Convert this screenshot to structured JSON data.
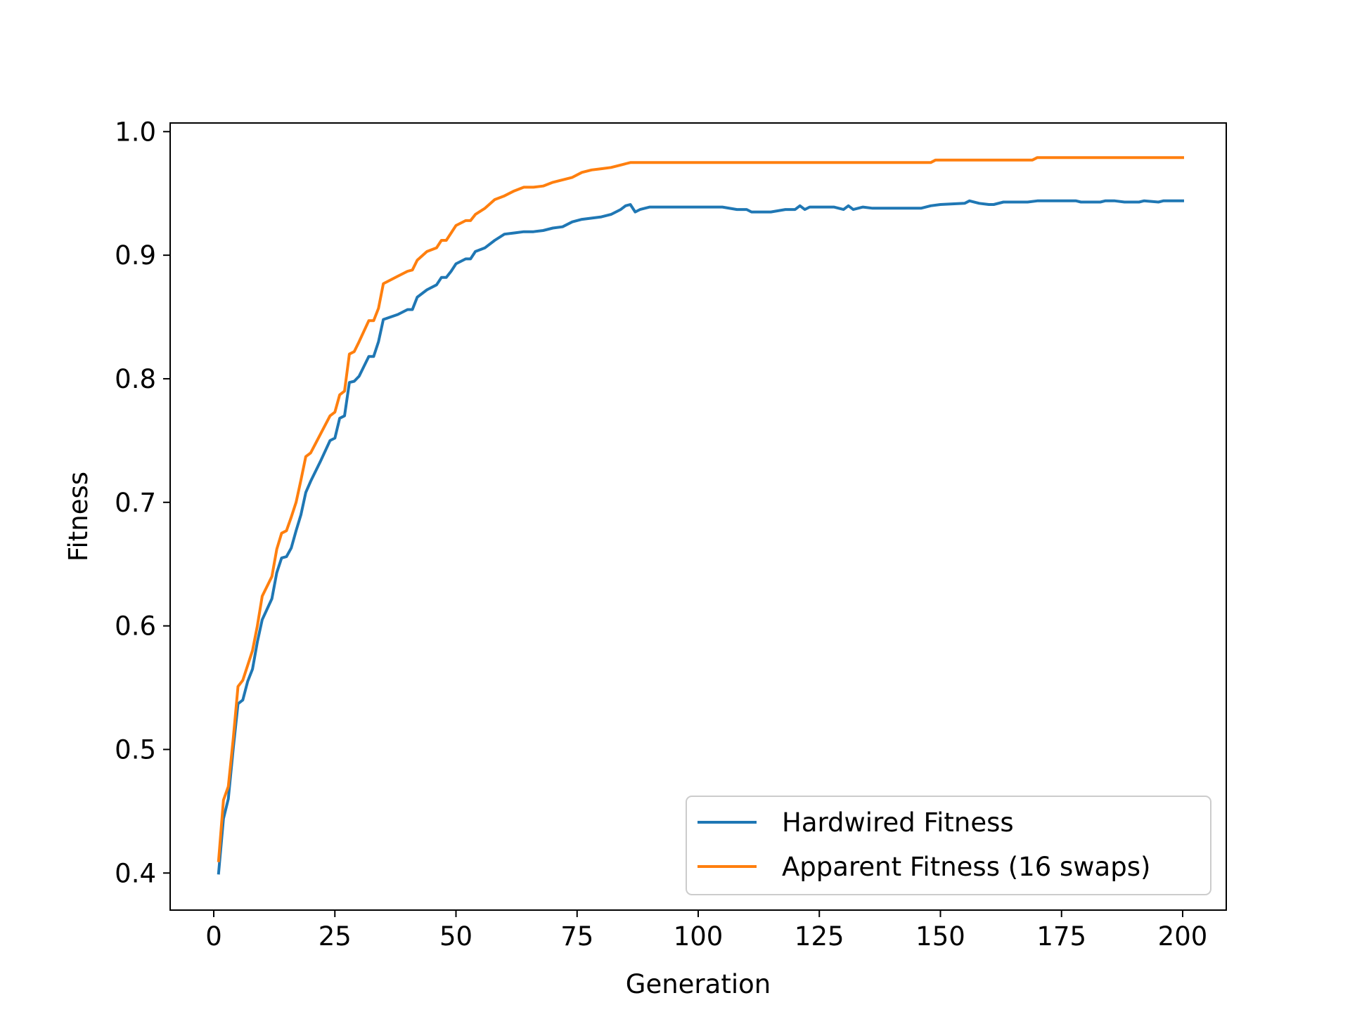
{
  "chart_data": {
    "type": "line",
    "title": "",
    "xlabel": "Generation",
    "ylabel": "Fitness",
    "xlim": [
      -9,
      209
    ],
    "ylim": [
      0.37,
      1.007
    ],
    "xticks": [
      0,
      25,
      50,
      75,
      100,
      125,
      150,
      175,
      200
    ],
    "xtick_labels": [
      "0",
      "25",
      "50",
      "75",
      "100",
      "125",
      "150",
      "175",
      "200"
    ],
    "yticks": [
      0.4,
      0.5,
      0.6,
      0.7,
      0.8,
      0.9,
      1.0
    ],
    "ytick_labels": [
      "0.4",
      "0.5",
      "0.6",
      "0.7",
      "0.8",
      "0.9",
      "1.0"
    ],
    "grid": false,
    "legend_position": "lower-right",
    "series": [
      {
        "name": "Hardwired Fitness",
        "color": "#1f77b4",
        "x": [
          1,
          2,
          3,
          4,
          5,
          6,
          7,
          8,
          9,
          10,
          12,
          13,
          14,
          15,
          16,
          17,
          18,
          19,
          20,
          22,
          24,
          25,
          26,
          27,
          28,
          29,
          30,
          32,
          33,
          34,
          35,
          38,
          40,
          41,
          42,
          44,
          46,
          47,
          48,
          49,
          50,
          52,
          53,
          54,
          56,
          58,
          60,
          62,
          64,
          66,
          68,
          70,
          72,
          74,
          76,
          78,
          80,
          82,
          84,
          85,
          86,
          87,
          88,
          90,
          95,
          100,
          105,
          108,
          110,
          111,
          115,
          118,
          120,
          121,
          122,
          123,
          125,
          128,
          130,
          131,
          132,
          134,
          136,
          140,
          145,
          146,
          148,
          150,
          155,
          156,
          158,
          160,
          161,
          163,
          165,
          166,
          168,
          170,
          175,
          178,
          179,
          180,
          182,
          183,
          184,
          185,
          186,
          188,
          190,
          191,
          192,
          195,
          196,
          198,
          200
        ],
        "y": [
          0.4,
          0.444,
          0.46,
          0.5,
          0.537,
          0.54,
          0.555,
          0.565,
          0.587,
          0.605,
          0.622,
          0.643,
          0.655,
          0.656,
          0.663,
          0.677,
          0.69,
          0.708,
          0.717,
          0.733,
          0.75,
          0.752,
          0.768,
          0.77,
          0.797,
          0.798,
          0.802,
          0.818,
          0.818,
          0.83,
          0.848,
          0.852,
          0.856,
          0.856,
          0.866,
          0.872,
          0.876,
          0.882,
          0.882,
          0.887,
          0.893,
          0.897,
          0.897,
          0.903,
          0.906,
          0.912,
          0.917,
          0.918,
          0.919,
          0.919,
          0.92,
          0.922,
          0.923,
          0.927,
          0.929,
          0.93,
          0.931,
          0.933,
          0.937,
          0.94,
          0.941,
          0.935,
          0.937,
          0.939,
          0.939,
          0.939,
          0.939,
          0.937,
          0.937,
          0.935,
          0.935,
          0.937,
          0.937,
          0.94,
          0.937,
          0.939,
          0.939,
          0.939,
          0.937,
          0.94,
          0.937,
          0.939,
          0.938,
          0.938,
          0.938,
          0.938,
          0.94,
          0.941,
          0.942,
          0.944,
          0.942,
          0.941,
          0.941,
          0.943,
          0.943,
          0.943,
          0.943,
          0.944,
          0.944,
          0.944,
          0.943,
          0.943,
          0.943,
          0.943,
          0.944,
          0.944,
          0.944,
          0.943,
          0.943,
          0.943,
          0.944,
          0.943,
          0.944,
          0.944,
          0.944
        ]
      },
      {
        "name": "Apparent Fitness (16 swaps)",
        "color": "#ff7f0e",
        "x": [
          1,
          2,
          3,
          4,
          5,
          6,
          7,
          8,
          9,
          10,
          12,
          13,
          14,
          15,
          16,
          17,
          18,
          19,
          20,
          22,
          24,
          25,
          26,
          27,
          28,
          29,
          30,
          32,
          33,
          34,
          35,
          38,
          40,
          41,
          42,
          44,
          46,
          47,
          48,
          49,
          50,
          52,
          53,
          54,
          56,
          58,
          60,
          62,
          64,
          66,
          68,
          70,
          72,
          74,
          76,
          78,
          80,
          82,
          84,
          85,
          86,
          90,
          100,
          110,
          120,
          130,
          140,
          148,
          149,
          150,
          160,
          169,
          170,
          180,
          190,
          200
        ],
        "y": [
          0.41,
          0.459,
          0.47,
          0.508,
          0.551,
          0.556,
          0.568,
          0.58,
          0.6,
          0.624,
          0.64,
          0.662,
          0.675,
          0.677,
          0.688,
          0.7,
          0.718,
          0.737,
          0.74,
          0.755,
          0.77,
          0.773,
          0.787,
          0.79,
          0.82,
          0.822,
          0.83,
          0.847,
          0.847,
          0.857,
          0.877,
          0.883,
          0.887,
          0.888,
          0.896,
          0.903,
          0.906,
          0.912,
          0.912,
          0.918,
          0.924,
          0.928,
          0.928,
          0.933,
          0.938,
          0.945,
          0.948,
          0.952,
          0.955,
          0.955,
          0.956,
          0.959,
          0.961,
          0.963,
          0.967,
          0.969,
          0.97,
          0.971,
          0.973,
          0.974,
          0.975,
          0.975,
          0.975,
          0.975,
          0.975,
          0.975,
          0.975,
          0.975,
          0.977,
          0.977,
          0.977,
          0.977,
          0.979,
          0.979,
          0.979,
          0.979
        ]
      }
    ]
  }
}
